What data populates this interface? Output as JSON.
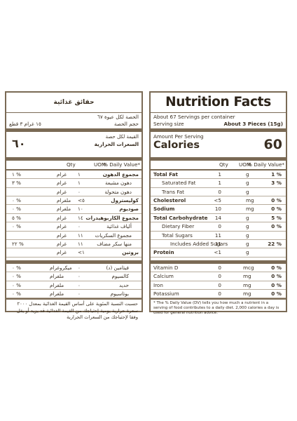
{
  "en": {
    "title": "Nutrition Facts",
    "servings_per_container": "About 67 Servings per container",
    "serving_size_label": "Serving size",
    "serving_size_value": "About 3 Pieces (15g)",
    "amount_per_serving": "Amount Per Serving",
    "calories_label": "Calories",
    "calories_value": "60",
    "header": {
      "qty": "Qty",
      "uom": "UOM",
      "dv": "% Daily Value*"
    },
    "rows": [
      {
        "name": "Total Fat",
        "qty": "1",
        "uom": "g",
        "dv": "1 %",
        "bold": true,
        "indent": 0
      },
      {
        "name": "Saturated Fat",
        "qty": "1",
        "uom": "g",
        "dv": "3 %",
        "bold": false,
        "indent": 1
      },
      {
        "name": "Trans Fat",
        "qty": "0",
        "uom": "g",
        "dv": "",
        "bold": false,
        "indent": 1
      },
      {
        "name": "Cholesterol",
        "qty": "<5",
        "uom": "mg",
        "dv": "0 %",
        "bold": true,
        "indent": 0
      },
      {
        "name": "Sodium",
        "qty": "10",
        "uom": "mg",
        "dv": "0 %",
        "bold": true,
        "indent": 0
      },
      {
        "name": "Total Carbohydrate",
        "qty": "14",
        "uom": "g",
        "dv": "5 %",
        "bold": true,
        "indent": 0
      },
      {
        "name": "Dietary Fiber",
        "qty": "0",
        "uom": "g",
        "dv": "0 %",
        "bold": false,
        "indent": 1
      },
      {
        "name": "Total Sugars",
        "qty": "11",
        "uom": "g",
        "dv": "",
        "bold": false,
        "indent": 1
      },
      {
        "name": "Includes Added Sugars",
        "qty": "11",
        "uom": "g",
        "dv": "22 %",
        "bold": false,
        "indent": 2
      },
      {
        "name": "Protein",
        "qty": "<1",
        "uom": "g",
        "dv": "",
        "bold": true,
        "indent": 0
      }
    ],
    "vitamins": [
      {
        "name": "Vitamin D",
        "qty": "0",
        "uom": "mcg",
        "dv": "0 %"
      },
      {
        "name": "Calcium",
        "qty": "0",
        "uom": "mg",
        "dv": "0 %"
      },
      {
        "name": "Iron",
        "qty": "0",
        "uom": "mg",
        "dv": "0 %"
      },
      {
        "name": "Potassium",
        "qty": "0",
        "uom": "mg",
        "dv": "0 %"
      }
    ],
    "footnote": "* The % Daily Value (DV) tells you how much a nutrient in a serving of food contributes to a daily diet. 2,000 calories a day is used for general nutrition advice."
  },
  "ar": {
    "title": "حقائق غذائية",
    "servings_per_container": "الحصة لكل عبوة ٦٧",
    "serving_size_label": "حجم الحصة",
    "serving_size_value": "١٥ غرام ٣ قطع",
    "amount_per_serving": "القيمة لكل حصة",
    "calories_label": "السعرات الحرارية",
    "calories_value": "٦٠",
    "header": {
      "qty": "Qty",
      "uom": "UOM",
      "dv": "% Daily Value*"
    },
    "rows": [
      {
        "name": "مجموع الدهون",
        "qty": "١",
        "uom": "غرام",
        "dv": "١ %",
        "bold": true,
        "indent": 0
      },
      {
        "name": "دهون مشبعة",
        "qty": "١",
        "uom": "غرام",
        "dv": "٣ %",
        "bold": false,
        "indent": 1
      },
      {
        "name": "دهون متحولة",
        "qty": "٠",
        "uom": "غرام",
        "dv": "",
        "bold": false,
        "indent": 1
      },
      {
        "name": "كوليسترول",
        "qty": "<٥",
        "uom": "ملغرام",
        "dv": "٠ %",
        "bold": true,
        "indent": 0
      },
      {
        "name": "صوديوم",
        "qty": "١٠",
        "uom": "ملغرام",
        "dv": "٠ %",
        "bold": true,
        "indent": 0
      },
      {
        "name": "مجموع الكاربوهيدرات",
        "qty": "١٤",
        "uom": "غرام",
        "dv": "٥ %",
        "bold": true,
        "indent": 0
      },
      {
        "name": "ألياف غذائية",
        "qty": "٠",
        "uom": "غرام",
        "dv": "٠ %",
        "bold": false,
        "indent": 1
      },
      {
        "name": "مجموع السكريات",
        "qty": "١١",
        "uom": "غرام",
        "dv": "",
        "bold": false,
        "indent": 1
      },
      {
        "name": "منها سكر مضاف",
        "qty": "١١",
        "uom": "غرام",
        "dv": "٢٢ %",
        "bold": false,
        "indent": 1
      },
      {
        "name": "بروتين",
        "qty": "<١",
        "uom": "غرام",
        "dv": "",
        "bold": true,
        "indent": 0
      }
    ],
    "vitamins": [
      {
        "name": "فيتامين (د)",
        "qty": "٠",
        "uom": "ميكروغرام",
        "dv": "٠ %"
      },
      {
        "name": "كالسيوم",
        "qty": "٠",
        "uom": "ملغرام",
        "dv": "٠ %"
      },
      {
        "name": "حديد",
        "qty": "٠",
        "uom": "ملغرام",
        "dv": "٠ %"
      },
      {
        "name": "بوتاسيوم",
        "qty": "٠",
        "uom": "ملغرام",
        "dv": "٠ %"
      }
    ],
    "footnote": "حسبت النسبة المئوية على أساس القيمة الغذائية بمعدل ٢٠٠٠ سعرة حرارية يومية إحتياجك من القيمة الغذائية قد يزيد أو يقل وفقا لإحتياجك من السعرات الحرارية"
  }
}
